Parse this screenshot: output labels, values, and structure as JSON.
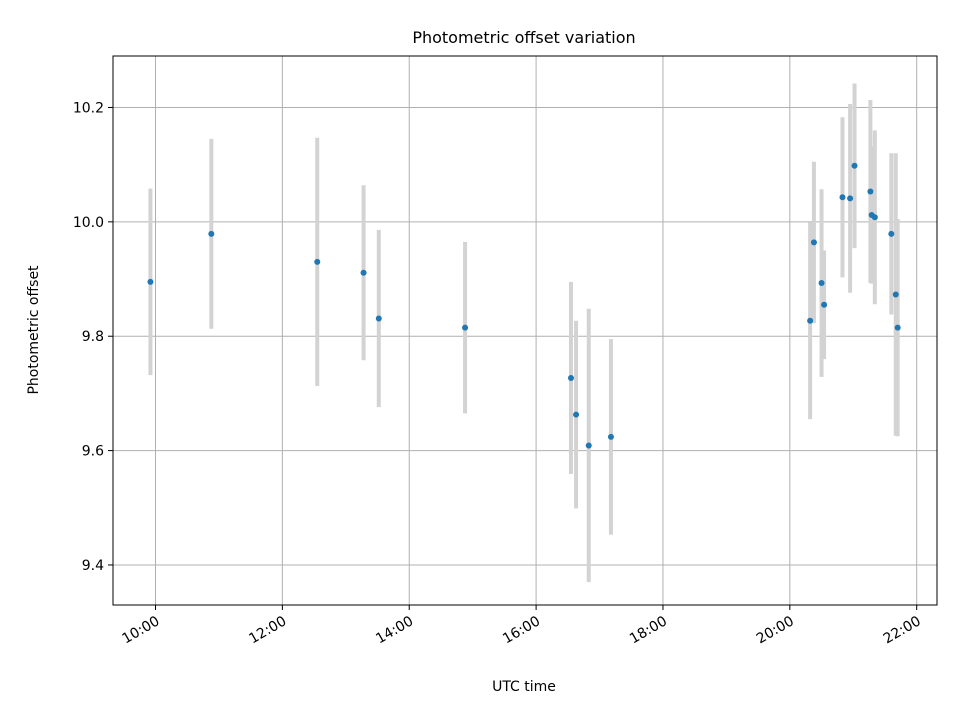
{
  "chart_data": {
    "type": "scatter",
    "title": "Photometric offset variation",
    "xlabel": "UTC time",
    "ylabel": "Photometric offset",
    "x_ticks": [
      "10:00",
      "12:00",
      "14:00",
      "16:00",
      "18:00",
      "20:00",
      "22:00"
    ],
    "x_tick_hours": [
      10,
      12,
      14,
      16,
      18,
      20,
      22
    ],
    "y_ticks": [
      "9.4",
      "9.6",
      "9.8",
      "10.0",
      "10.2"
    ],
    "y_tick_values": [
      9.4,
      9.6,
      9.8,
      10.0,
      10.2
    ],
    "xlim_hours": [
      9.33,
      22.32
    ],
    "ylim": [
      9.33,
      10.29
    ],
    "grid": true,
    "series": [
      {
        "name": "offset",
        "point_color": "#1f77b4",
        "errorbar_color": "#d3d3d3",
        "points": [
          {
            "t": 9.92,
            "y": 9.895,
            "err": 0.163
          },
          {
            "t": 10.88,
            "y": 9.979,
            "err": 0.166
          },
          {
            "t": 12.55,
            "y": 9.93,
            "err": 0.217
          },
          {
            "t": 13.28,
            "y": 9.911,
            "err": 0.153
          },
          {
            "t": 13.52,
            "y": 9.831,
            "err": 0.155
          },
          {
            "t": 14.88,
            "y": 9.815,
            "err": 0.15
          },
          {
            "t": 16.55,
            "y": 9.727,
            "err": 0.168
          },
          {
            "t": 16.63,
            "y": 9.663,
            "err": 0.164
          },
          {
            "t": 16.83,
            "y": 9.609,
            "err": 0.239
          },
          {
            "t": 17.18,
            "y": 9.624,
            "err": 0.171
          },
          {
            "t": 20.32,
            "y": 9.827,
            "err": 0.172
          },
          {
            "t": 20.38,
            "y": 9.964,
            "err": 0.141
          },
          {
            "t": 20.5,
            "y": 9.893,
            "err": 0.164
          },
          {
            "t": 20.54,
            "y": 9.855,
            "err": 0.095
          },
          {
            "t": 20.83,
            "y": 10.043,
            "err": 0.14
          },
          {
            "t": 20.95,
            "y": 10.041,
            "err": 0.165
          },
          {
            "t": 21.02,
            "y": 10.098,
            "err": 0.144
          },
          {
            "t": 21.27,
            "y": 10.053,
            "err": 0.16
          },
          {
            "t": 21.29,
            "y": 10.012,
            "err": 0.12
          },
          {
            "t": 21.34,
            "y": 10.008,
            "err": 0.152
          },
          {
            "t": 21.6,
            "y": 9.979,
            "err": 0.141
          },
          {
            "t": 21.67,
            "y": 9.873,
            "err": 0.247
          },
          {
            "t": 21.7,
            "y": 9.815,
            "err": 0.19
          }
        ]
      }
    ]
  }
}
